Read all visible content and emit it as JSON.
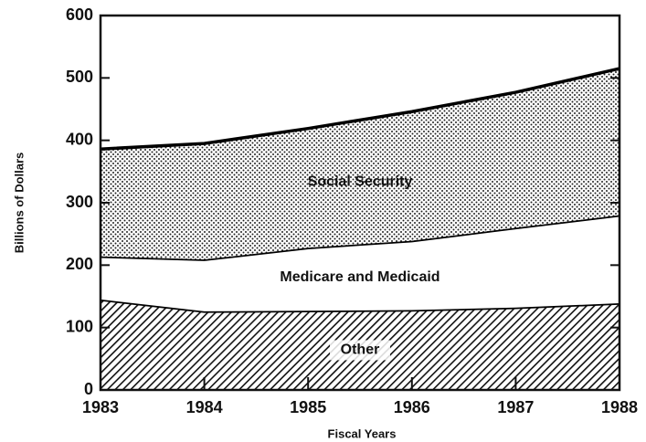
{
  "chart_data": {
    "type": "stacked-area",
    "x_label": "Fiscal Years",
    "y_label": "Billions of Dollars",
    "x": [
      1983,
      1984,
      1985,
      1986,
      1987,
      1988
    ],
    "series": [
      {
        "name": "Other",
        "color": "#000000",
        "pattern": "hatch",
        "values": [
          145,
          126,
          127,
          128,
          132,
          139
        ]
      },
      {
        "name": "Medicare and Medicaid",
        "color": "#000000",
        "pattern": "none",
        "values": [
          69,
          83,
          101,
          111,
          128,
          141
        ]
      },
      {
        "name": "Social Security",
        "color": "#000000",
        "pattern": "dots",
        "values": [
          172,
          186,
          191,
          207,
          217,
          235
        ]
      }
    ],
    "xlim": [
      1983,
      1988
    ],
    "xticks": [
      1983,
      1984,
      1985,
      1986,
      1987,
      1988
    ],
    "ylim": [
      0,
      600
    ],
    "yticks": [
      0,
      100,
      200,
      300,
      400,
      500,
      600
    ]
  }
}
